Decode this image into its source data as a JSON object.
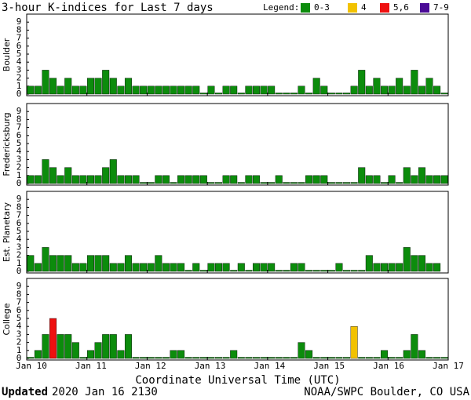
{
  "chart_data": {
    "type": "bar",
    "title": "3-hour K-indices for Last 7 days",
    "legend_title": "Legend:",
    "legend": [
      {
        "label": "0-3",
        "color": "#0c8c0c"
      },
      {
        "label": "4",
        "color": "#f2c200"
      },
      {
        "label": "5,6",
        "color": "#ee1010"
      },
      {
        "label": "7-9",
        "color": "#4a0a96"
      }
    ],
    "x_label": "Coordinate Universal Time (UTC)",
    "xticks": [
      "Jan 10",
      "Jan 11",
      "Jan 12",
      "Jan 13",
      "Jan 14",
      "Jan 15",
      "Jan 16",
      "Jan 17"
    ],
    "ylim": [
      0,
      10
    ],
    "yticks": [
      0,
      1,
      2,
      3,
      4,
      5,
      6,
      7,
      8,
      9
    ],
    "series": [
      {
        "name": "Boulder",
        "values": [
          1,
          1,
          3,
          2,
          1,
          2,
          1,
          1,
          2,
          2,
          3,
          2,
          1,
          2,
          1,
          1,
          1,
          1,
          1,
          1,
          1,
          1,
          1,
          0,
          1,
          0,
          1,
          1,
          0,
          1,
          1,
          1,
          1,
          0,
          0,
          0,
          1,
          0,
          2,
          1,
          0,
          0,
          0,
          1,
          3,
          1,
          2,
          1,
          1,
          2,
          1,
          3,
          1,
          2,
          1,
          0
        ]
      },
      {
        "name": "Fredericksburg",
        "values": [
          1,
          1,
          3,
          2,
          1,
          2,
          1,
          1,
          1,
          1,
          2,
          3,
          1,
          1,
          1,
          0,
          0,
          1,
          1,
          0,
          1,
          1,
          1,
          1,
          0,
          0,
          1,
          1,
          0,
          1,
          1,
          0,
          0,
          1,
          0,
          0,
          0,
          1,
          1,
          1,
          0,
          0,
          0,
          0,
          2,
          1,
          1,
          0,
          1,
          0,
          2,
          1,
          2,
          1,
          1,
          1
        ]
      },
      {
        "name": "Est. Planetary",
        "values": [
          2,
          1,
          3,
          2,
          2,
          2,
          1,
          1,
          2,
          2,
          2,
          1,
          1,
          2,
          1,
          1,
          1,
          2,
          1,
          1,
          1,
          0,
          1,
          0,
          1,
          1,
          1,
          0,
          1,
          0,
          1,
          1,
          1,
          0,
          0,
          1,
          1,
          0,
          0,
          0,
          0,
          1,
          0,
          0,
          0,
          2,
          1,
          1,
          1,
          1,
          3,
          2,
          2,
          1,
          1,
          null
        ]
      },
      {
        "name": "College",
        "values": [
          0,
          1,
          3,
          5,
          3,
          3,
          2,
          0,
          1,
          2,
          3,
          3,
          1,
          3,
          0,
          0,
          0,
          0,
          0,
          1,
          1,
          0,
          0,
          0,
          0,
          0,
          0,
          1,
          0,
          0,
          0,
          0,
          0,
          0,
          0,
          0,
          2,
          1,
          0,
          0,
          0,
          0,
          0,
          4,
          0,
          0,
          0,
          1,
          0,
          0,
          1,
          3,
          1,
          0,
          0,
          0
        ]
      }
    ]
  },
  "footer": {
    "updated_label": "Updated",
    "updated_time": "2020 Jan 16 2130",
    "source": "NOAA/SWPC Boulder, CO USA"
  }
}
